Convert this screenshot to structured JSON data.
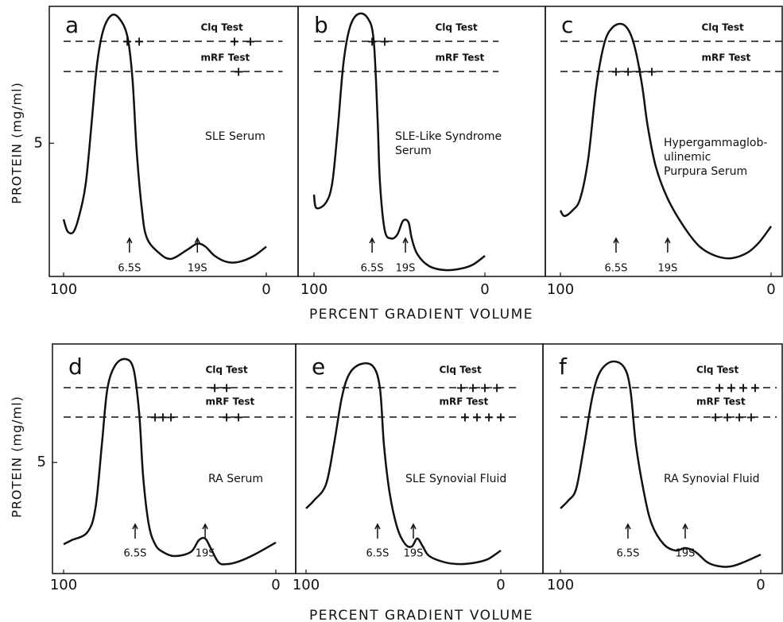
{
  "chart_data": [
    {
      "type": "line",
      "title": "a",
      "annotation": [
        "SLE Serum"
      ],
      "ylabel": "PROTEIN (mg/ml)",
      "x": [
        100,
        98,
        95,
        92,
        89,
        86,
        83.5,
        80.5,
        76.5,
        72.5,
        68.5,
        66,
        64,
        61.5,
        59,
        53,
        47,
        39,
        34,
        30,
        25.5,
        19.5,
        13.5,
        6,
        0
      ],
      "values": [
        2.5,
        2.1,
        2.1,
        2.7,
        3.7,
        5.8,
        7.6,
        8.7,
        9.2,
        9.1,
        8.5,
        7.1,
        4.8,
        2.9,
        1.9,
        1.4,
        1.2,
        1.5,
        1.7,
        1.6,
        1.3,
        1.1,
        1.1,
        1.3,
        1.6
      ],
      "color": "#111",
      "xlim": [
        100,
        0
      ],
      "xticks": [
        100,
        0
      ],
      "ylim": [
        0.7,
        9.5
      ],
      "yticks": [
        5
      ],
      "tests": [
        {
          "name": "Clq Test",
          "symbol": "+",
          "positions": [
            68.6,
            62.7,
            15.7,
            7.8
          ]
        },
        {
          "name": "mRF Test",
          "symbol": "+",
          "positions": [
            13.7
          ]
        }
      ],
      "markers": [
        {
          "label": "6.5S",
          "x": 67.5
        },
        {
          "label": "19S",
          "x": 34
        }
      ]
    },
    {
      "type": "line",
      "title": "b",
      "annotation": [
        "SLE-Like Syndrome",
        "Serum"
      ],
      "xlabel": "PERCENT GRADIENT VOLUME",
      "x": [
        100,
        98.6,
        93,
        89.3,
        86,
        82.8,
        79.1,
        74.4,
        68.8,
        65.1,
        62.8,
        61.4,
        58.6,
        54.9,
        51.2,
        47.9,
        44.7,
        42.8,
        39.5,
        32.6,
        23.3,
        14,
        7,
        0
      ],
      "values": [
        3.31,
        2.87,
        3.05,
        3.7,
        5.53,
        7.62,
        8.79,
        9.24,
        9.13,
        8.4,
        5.79,
        3.7,
        2.14,
        1.87,
        2.0,
        2.45,
        2.4,
        1.87,
        1.35,
        0.96,
        0.83,
        0.88,
        1.01,
        1.3
      ],
      "color": "#111",
      "xlim": [
        100,
        0
      ],
      "xticks": [
        100,
        0
      ],
      "ylim": [
        0.7,
        9.5
      ],
      "tests": [
        {
          "name": "Clq Test",
          "symbol": "+",
          "positions": [
            66,
            58.6
          ]
        },
        {
          "name": "mRF Test",
          "symbol": "+",
          "positions": []
        }
      ],
      "markers": [
        {
          "label": "6.5S",
          "x": 66
        },
        {
          "label": "19S",
          "x": 46.5
        }
      ]
    },
    {
      "type": "line",
      "title": "c",
      "annotation": [
        "Hypergammaglob-",
        "ulinemic",
        "Purpura Serum"
      ],
      "x": [
        100,
        98.1,
        94.3,
        90.6,
        86.8,
        83,
        79.2,
        75.5,
        70.9,
        67.2,
        64.2,
        61.1,
        58.5,
        54.7,
        49.1,
        41.5,
        34,
        26.4,
        18.9,
        11.3,
        5.7,
        0
      ],
      "values": [
        2.79,
        2.61,
        2.79,
        3.18,
        4.49,
        6.84,
        8.27,
        8.79,
        8.92,
        8.66,
        8.01,
        6.84,
        5.53,
        4.23,
        3.18,
        2.27,
        1.61,
        1.3,
        1.22,
        1.4,
        1.74,
        2.27
      ],
      "color": "#111",
      "xlim": [
        100,
        0
      ],
      "xticks": [
        100,
        0
      ],
      "ylim": [
        0.7,
        9.5
      ],
      "tests": [
        {
          "name": "Clq Test",
          "symbol": "+",
          "positions": []
        },
        {
          "name": "mRF Test",
          "symbol": "+",
          "positions": [
            73.6,
            67.9,
            62.3,
            56.6
          ]
        }
      ],
      "markers": [
        {
          "label": "6.5S",
          "x": 73.6
        },
        {
          "label": "19S",
          "x": 49.1
        }
      ]
    },
    {
      "type": "line",
      "title": "d",
      "annotation": [
        "RA Serum"
      ],
      "ylabel": "PROTEIN (mg/ml)",
      "x": [
        100,
        96.3,
        88.8,
        85,
        82,
        79.4,
        75.7,
        70.8,
        67,
        64.4,
        62.5,
        59.9,
        56.9,
        53.2,
        47.6,
        40.1,
        36.3,
        33.3,
        30.7,
        27,
        23.2,
        17.6,
        10.1,
        0
      ],
      "values": [
        1.74,
        1.9,
        2.22,
        3.17,
        5.7,
        7.92,
        8.87,
        9.12,
        8.71,
        6.97,
        4.43,
        2.54,
        1.74,
        1.43,
        1.27,
        1.43,
        1.9,
        1.97,
        1.59,
        1.02,
        0.95,
        1.05,
        1.33,
        1.81
      ],
      "color": "#111",
      "xlim": [
        100,
        0
      ],
      "xticks": [
        100,
        0
      ],
      "ylim": [
        0.7,
        9.5
      ],
      "yticks": [
        5
      ],
      "tests": [
        {
          "name": "Clq Test",
          "symbol": "+",
          "positions": [
            28.8,
            23.2
          ]
        },
        {
          "name": "mRF Test",
          "symbol": "+",
          "positions": [
            56.9,
            53.2,
            49.4,
            23.2,
            17.6
          ]
        }
      ],
      "markers": [
        {
          "label": "6.5S",
          "x": 66.3
        },
        {
          "label": "19S",
          "x": 33.3
        }
      ]
    },
    {
      "type": "line",
      "title": "e",
      "annotation": [
        "SLE Synovial Fluid"
      ],
      "xlabel": "PERCENT GRADIENT VOLUME",
      "x": [
        100,
        95.9,
        89.8,
        85.7,
        81.6,
        77.6,
        71.4,
        65.3,
        62,
        60,
        57.1,
        53.1,
        49,
        45.7,
        42.9,
        40,
        36.7,
        28.6,
        20.4,
        12.2,
        6.1,
        0
      ],
      "values": [
        3.17,
        3.49,
        4.12,
        5.7,
        7.6,
        8.55,
        8.93,
        8.8,
        7.92,
        5.7,
        3.8,
        2.38,
        1.74,
        1.65,
        1.97,
        1.65,
        1.27,
        1.02,
        0.95,
        1.02,
        1.17,
        1.49
      ],
      "color": "#111",
      "xlim": [
        100,
        0
      ],
      "xticks": [
        100,
        0
      ],
      "ylim": [
        0.7,
        9.5
      ],
      "tests": [
        {
          "name": "Clq Test",
          "symbol": "+",
          "positions": [
            20.4,
            14.3,
            8.2,
            2
          ]
        },
        {
          "name": "mRF Test",
          "symbol": "+",
          "positions": [
            18.4,
            12.2,
            6.1,
            0
          ]
        }
      ],
      "markers": [
        {
          "label": "6.5S",
          "x": 63.3
        },
        {
          "label": "19S",
          "x": 44.9
        }
      ]
    },
    {
      "type": "line",
      "title": "f",
      "annotation": [
        "RA Synovial Fluid"
      ],
      "x": [
        100,
        96,
        92.1,
        88.1,
        84.1,
        80.2,
        74.2,
        68.3,
        65.1,
        62.3,
        58.3,
        54.4,
        48.4,
        42.5,
        37.7,
        32.5,
        26.6,
        20.6,
        14.7,
        8.7,
        0
      ],
      "values": [
        3.17,
        3.49,
        3.96,
        5.7,
        7.6,
        8.61,
        9.02,
        8.8,
        7.92,
        5.7,
        3.8,
        2.54,
        1.74,
        1.49,
        1.59,
        1.43,
        1.02,
        0.86,
        0.86,
        1.02,
        1.33
      ],
      "color": "#111",
      "xlim": [
        100,
        0
      ],
      "xticks": [
        100,
        0
      ],
      "ylim": [
        0.7,
        9.5
      ],
      "tests": [
        {
          "name": "Clq Test",
          "symbol": "+",
          "positions": [
            20.6,
            14.7,
            8.7,
            2.8
          ]
        },
        {
          "name": "mRF Test",
          "symbol": "+",
          "positions": [
            22.6,
            16.7,
            10.7,
            4.8
          ]
        }
      ],
      "markers": [
        {
          "label": "6.5S",
          "x": 66.3
        },
        {
          "label": "19S",
          "x": 37.7
        }
      ]
    }
  ]
}
